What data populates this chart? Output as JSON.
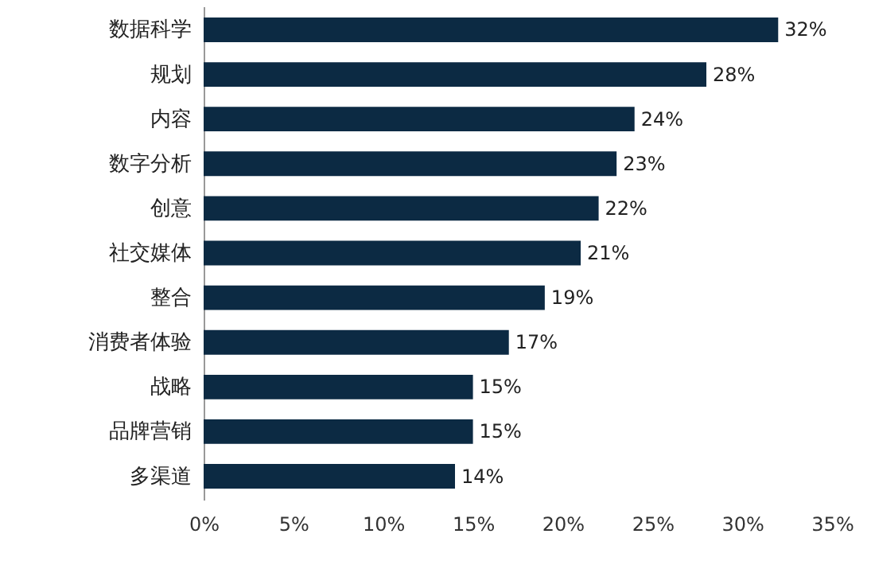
{
  "chart_data": {
    "type": "bar",
    "orientation": "horizontal",
    "categories": [
      "数据科学",
      "规划",
      "内容",
      "数字分析",
      "创意",
      "社交媒体",
      "整合",
      "消费者体验",
      "战略",
      "品牌营销",
      "多渠道"
    ],
    "values": [
      32,
      28,
      24,
      23,
      22,
      21,
      19,
      17,
      15,
      15,
      14
    ],
    "value_labels": [
      "32%",
      "28%",
      "24%",
      "23%",
      "22%",
      "21%",
      "19%",
      "17%",
      "15%",
      "15%",
      "14%"
    ],
    "color": "#0c2a43",
    "xlim": [
      0,
      35
    ],
    "xticks": [
      {
        "value": 0,
        "label": "0%"
      },
      {
        "value": 5,
        "label": "5%"
      },
      {
        "value": 10,
        "label": "10%"
      },
      {
        "value": 15,
        "label": "15%"
      },
      {
        "value": 20,
        "label": "20%"
      },
      {
        "value": 25,
        "label": "25%"
      },
      {
        "value": 30,
        "label": "30%"
      },
      {
        "value": 35,
        "label": "35%"
      }
    ],
    "grid": false
  }
}
